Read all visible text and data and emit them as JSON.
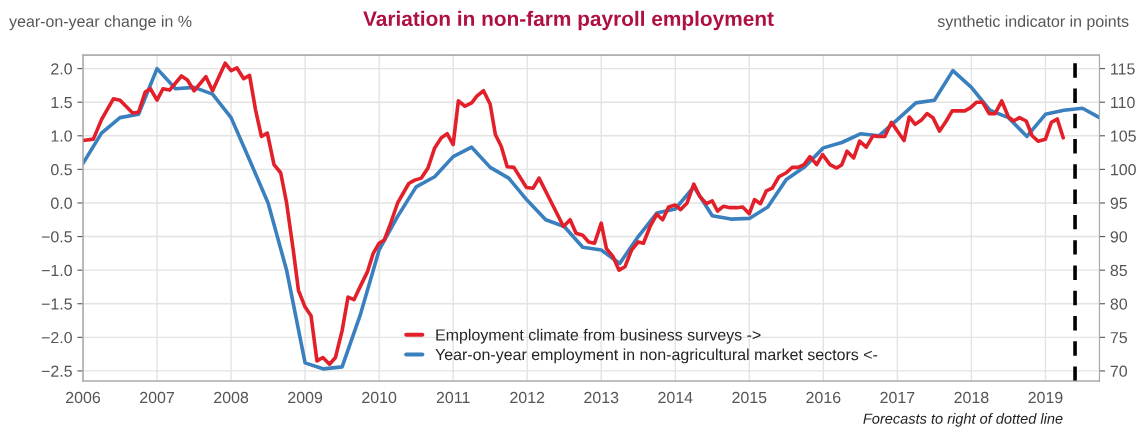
{
  "chart_data": {
    "type": "line",
    "title": "Variation in non-farm payroll employment",
    "ylabel": "year-on-year change in %",
    "y2label": "synthetic indicator in points",
    "xlim": [
      2006,
      2019.73
    ],
    "xticks": [
      2006,
      2007,
      2008,
      2009,
      2010,
      2011,
      2012,
      2013,
      2014,
      2015,
      2016,
      2017,
      2018,
      2019
    ],
    "ylim": [
      -2.65,
      2.2
    ],
    "yticks": [
      {
        "value": -2.5,
        "label": "−2.5"
      },
      {
        "value": -2.0,
        "label": "−2.0"
      },
      {
        "value": -1.5,
        "label": "−1.5"
      },
      {
        "value": -1.0,
        "label": "−1.0"
      },
      {
        "value": -0.5,
        "label": "−0.5"
      },
      {
        "value": 0,
        "label": "0.0"
      },
      0.5,
      {
        "value": 1,
        "label": "1.0"
      },
      1.5,
      {
        "value": 2,
        "label": "2.0"
      }
    ],
    "y2lim": [
      68.5,
      117
    ],
    "y2ticks": [
      70,
      75,
      80,
      85,
      90,
      95,
      100,
      105,
      110,
      115
    ],
    "grid": true,
    "legend": "bottom",
    "line_style": "solid",
    "ref_lines": [
      {
        "axis": "x",
        "value": 2019.4,
        "color": "#000000",
        "line_style": "dashed"
      }
    ],
    "annotations": [
      "Forecasts to right of dotted line"
    ],
    "series": [
      {
        "name": "Employment climate from business surveys ->",
        "color": "#e3202a",
        "axis": "y2",
        "x": [
          2006.0,
          2006.14,
          2006.25,
          2006.41,
          2006.5,
          2006.67,
          2006.75,
          2006.84,
          2006.91,
          2007.0,
          2007.08,
          2007.17,
          2007.33,
          2007.41,
          2007.5,
          2007.66,
          2007.75,
          2007.92,
          2008.0,
          2008.08,
          2008.17,
          2008.25,
          2008.33,
          2008.41,
          2008.49,
          2008.58,
          2008.67,
          2008.75,
          2008.84,
          2008.91,
          2009.0,
          2009.08,
          2009.16,
          2009.24,
          2009.33,
          2009.41,
          2009.5,
          2009.58,
          2009.66,
          2009.75,
          2009.84,
          2009.92,
          2010.0,
          2010.07,
          2010.14,
          2010.25,
          2010.4,
          2010.48,
          2010.57,
          2010.66,
          2010.75,
          2010.84,
          2010.92,
          2011.0,
          2011.07,
          2011.16,
          2011.25,
          2011.32,
          2011.41,
          2011.5,
          2011.57,
          2011.65,
          2011.73,
          2011.82,
          2011.99,
          2012.08,
          2012.16,
          2012.33,
          2012.49,
          2012.58,
          2012.66,
          2012.75,
          2012.83,
          2012.91,
          2013.0,
          2013.07,
          2013.16,
          2013.24,
          2013.32,
          2013.41,
          2013.5,
          2013.57,
          2013.66,
          2013.75,
          2013.83,
          2013.91,
          2014.0,
          2014.07,
          2014.16,
          2014.25,
          2014.33,
          2014.42,
          2014.5,
          2014.57,
          2014.65,
          2014.74,
          2014.83,
          2014.91,
          2015.0,
          2015.07,
          2015.15,
          2015.23,
          2015.31,
          2015.4,
          2015.5,
          2015.58,
          2015.66,
          2015.74,
          2015.82,
          2015.91,
          2015.99,
          2016.09,
          2016.18,
          2016.25,
          2016.32,
          2016.41,
          2016.49,
          2016.58,
          2016.67,
          2016.74,
          2016.83,
          2016.92,
          2017.0,
          2017.09,
          2017.16,
          2017.24,
          2017.33,
          2017.4,
          2017.48,
          2017.57,
          2017.66,
          2017.74,
          2017.82,
          2017.91,
          2017.99,
          2018.07,
          2018.15,
          2018.24,
          2018.32,
          2018.41,
          2018.5,
          2018.57,
          2018.65,
          2018.74,
          2018.82,
          2018.9,
          2019.0,
          2019.08,
          2019.16,
          2019.24
        ],
        "values": [
          104.3,
          104.5,
          107.4,
          110.5,
          110.3,
          108.4,
          108.5,
          111.5,
          112.0,
          110.3,
          112.0,
          111.8,
          113.9,
          113.3,
          111.7,
          113.8,
          111.7,
          115.8,
          114.7,
          115.1,
          113.5,
          114.0,
          108.9,
          104.9,
          105.4,
          100.7,
          99.5,
          95.0,
          88.0,
          82.0,
          79.5,
          78.2,
          71.5,
          72.0,
          71.0,
          72.0,
          76.0,
          81.0,
          80.6,
          82.7,
          84.7,
          87.5,
          89.0,
          89.5,
          91.5,
          95.0,
          97.9,
          98.4,
          98.7,
          100.2,
          103.2,
          104.7,
          105.3,
          103.7,
          110.2,
          109.4,
          109.9,
          110.9,
          111.7,
          109.7,
          105.2,
          103.4,
          100.4,
          100.3,
          97.3,
          97.2,
          98.7,
          95.0,
          91.5,
          92.5,
          90.5,
          90.2,
          89.2,
          89.0,
          92.0,
          88.2,
          87.0,
          85.0,
          85.5,
          88.0,
          89.2,
          89.0,
          91.5,
          93.3,
          92.5,
          94.4,
          94.7,
          94.0,
          95.0,
          97.8,
          96.0,
          94.9,
          95.3,
          93.8,
          94.5,
          94.3,
          94.3,
          94.4,
          93.4,
          95.5,
          94.9,
          96.8,
          97.2,
          98.9,
          99.5,
          100.3,
          100.3,
          100.7,
          101.9,
          100.7,
          102.2,
          100.7,
          100.2,
          100.7,
          102.7,
          101.7,
          104.2,
          103.3,
          105.0,
          104.9,
          104.9,
          107.0,
          105.7,
          104.3,
          107.8,
          106.7,
          107.4,
          108.3,
          107.7,
          105.7,
          107.2,
          108.7,
          108.7,
          108.7,
          109.2,
          110.0,
          110.0,
          108.3,
          108.3,
          110.2,
          107.8,
          107.2,
          107.7,
          107.2,
          105.0,
          104.2,
          104.5,
          107.0,
          107.5,
          104.7
        ]
      },
      {
        "name": "Year-on-year employment in non-agricultural market sectors <-",
        "color": "#3a80bf",
        "axis": "y",
        "x": [
          2006.0,
          2006.25,
          2006.5,
          2006.75,
          2007.0,
          2007.25,
          2007.5,
          2007.75,
          2008.0,
          2008.25,
          2008.5,
          2008.75,
          2009.0,
          2009.25,
          2009.5,
          2009.75,
          2010.0,
          2010.25,
          2010.5,
          2010.75,
          2011.0,
          2011.25,
          2011.5,
          2011.75,
          2012.0,
          2012.25,
          2012.5,
          2012.75,
          2013.0,
          2013.25,
          2013.5,
          2013.75,
          2014.0,
          2014.25,
          2014.5,
          2014.75,
          2015.0,
          2015.25,
          2015.5,
          2015.75,
          2016.0,
          2016.25,
          2016.5,
          2016.75,
          2017.0,
          2017.25,
          2017.5,
          2017.75,
          2018.0,
          2018.25,
          2018.5,
          2018.75,
          2019.0,
          2019.25,
          2019.5,
          2019.73
        ],
        "values": [
          0.59,
          1.04,
          1.27,
          1.32,
          2.0,
          1.7,
          1.72,
          1.62,
          1.27,
          0.64,
          0.0,
          -1.0,
          -2.38,
          -2.47,
          -2.44,
          -1.65,
          -0.7,
          -0.2,
          0.24,
          0.39,
          0.69,
          0.83,
          0.53,
          0.37,
          0.04,
          -0.25,
          -0.35,
          -0.66,
          -0.7,
          -0.9,
          -0.5,
          -0.15,
          -0.09,
          0.24,
          -0.19,
          -0.24,
          -0.23,
          -0.06,
          0.35,
          0.54,
          0.82,
          0.9,
          1.03,
          1.0,
          1.24,
          1.49,
          1.53,
          1.97,
          1.72,
          1.38,
          1.27,
          0.99,
          1.32,
          1.38,
          1.41,
          1.27
        ]
      }
    ]
  }
}
